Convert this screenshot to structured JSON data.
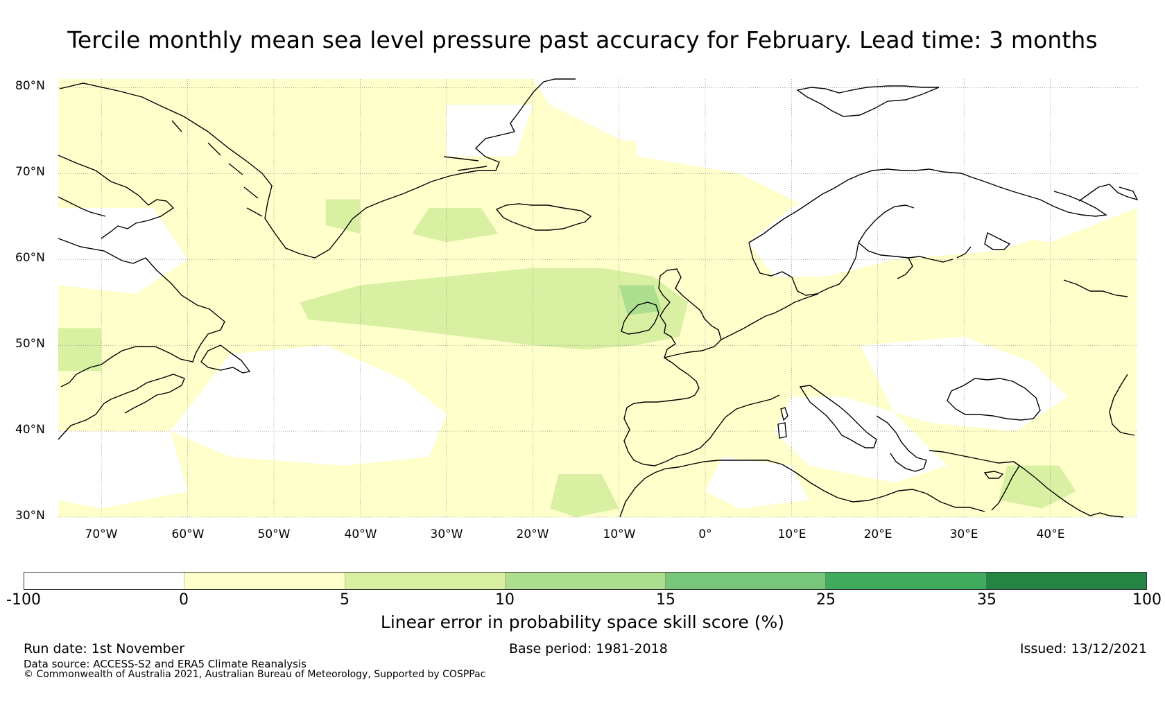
{
  "title": "Tercile monthly mean sea level pressure past accuracy for February. Lead time: 3 months",
  "map": {
    "lon_range": [
      -75,
      50
    ],
    "lat_range": [
      30,
      81
    ],
    "lat_ticks": [
      {
        "value": 80,
        "label": "80°N"
      },
      {
        "value": 70,
        "label": "70°N"
      },
      {
        "value": 60,
        "label": "60°N"
      },
      {
        "value": 50,
        "label": "50°N"
      },
      {
        "value": 40,
        "label": "40°N"
      },
      {
        "value": 30,
        "label": "30°N"
      }
    ],
    "lon_ticks": [
      {
        "value": -70,
        "label": "70°W"
      },
      {
        "value": -60,
        "label": "60°W"
      },
      {
        "value": -50,
        "label": "50°W"
      },
      {
        "value": -40,
        "label": "40°W"
      },
      {
        "value": -30,
        "label": "30°W"
      },
      {
        "value": -20,
        "label": "20°W"
      },
      {
        "value": -10,
        "label": "10°W"
      },
      {
        "value": 0,
        "label": "0°"
      },
      {
        "value": 10,
        "label": "10°E"
      },
      {
        "value": 20,
        "label": "20°E"
      },
      {
        "value": 30,
        "label": "30°E"
      },
      {
        "value": 40,
        "label": "40°E"
      }
    ],
    "gridlines": true,
    "fill_colors": {
      "white": "#ffffff",
      "light_yellow": "#ffffcc",
      "light_green": "#d9f0a3",
      "green": "#addd8e"
    }
  },
  "colorbar": {
    "colors": [
      "#ffffff",
      "#ffffcc",
      "#d9f0a3",
      "#addd8e",
      "#78c679",
      "#41ab5d",
      "#238443"
    ],
    "ticks": [
      "-100",
      "0",
      "5",
      "10",
      "15",
      "25",
      "35",
      "100"
    ],
    "label": "Linear error in probability space skill score (%)"
  },
  "footer": {
    "run_date": "Run date: 1st November",
    "base_period": "Base period: 1981-2018",
    "issued": "Issued: 13/12/2021",
    "data_source": "Data source: ACCESS-S2 and ERA5 Climate Reanalysis",
    "copyright": "© Commonwealth of Australia 2021, Australian Bureau of Meteorology, Supported by COSPPac"
  }
}
